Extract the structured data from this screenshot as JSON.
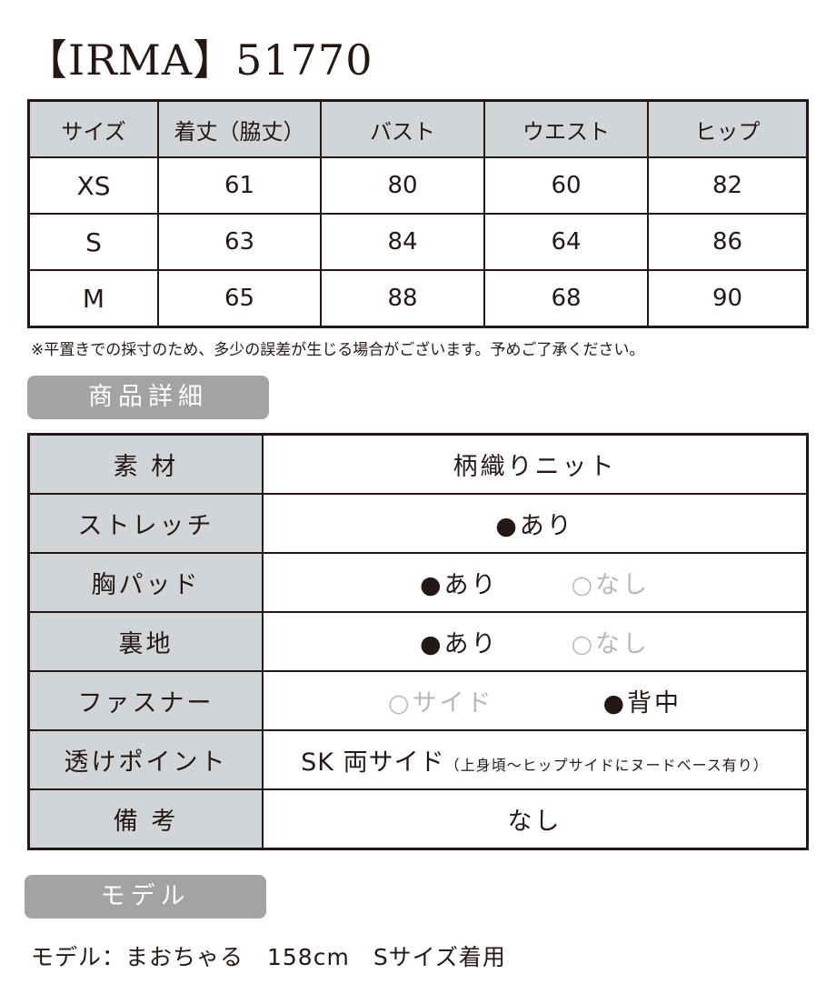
{
  "title": "【IRMA】51770",
  "size_table": {
    "headers": [
      "サイズ",
      "着丈（脇丈）",
      "バスト",
      "ウエスト",
      "ヒップ"
    ],
    "rows": [
      [
        "XS",
        "61",
        "80",
        "60",
        "82"
      ],
      [
        "S",
        "63",
        "84",
        "64",
        "86"
      ],
      [
        "M",
        "65",
        "88",
        "68",
        "90"
      ]
    ]
  },
  "note": "※平置きでの採寸のため、多少の誤差が生じる場合がございます。予めご了承ください。",
  "details_heading": "商品詳細",
  "details": {
    "material": {
      "label": "素 材",
      "value": "柄織りニット"
    },
    "stretch": {
      "label": "ストレッチ",
      "value": "●あり"
    },
    "chest_pad": {
      "label": "胸パッド",
      "on": "●あり",
      "off": "○なし"
    },
    "lining": {
      "label": "裏地",
      "on": "●あり",
      "off": "○なし"
    },
    "fastener": {
      "label": "ファスナー",
      "off": "○サイド",
      "on": "●背中"
    },
    "sheer": {
      "label": "透けポイント",
      "value": "SK 両サイド",
      "note": "（上身頃〜ヒップサイドにヌードベース有り）"
    },
    "remarks": {
      "label": "備 考",
      "value": "なし"
    }
  },
  "model_heading": "モデル",
  "model_text": "モデル：まおちゃる　158cm　Sサイズ着用"
}
